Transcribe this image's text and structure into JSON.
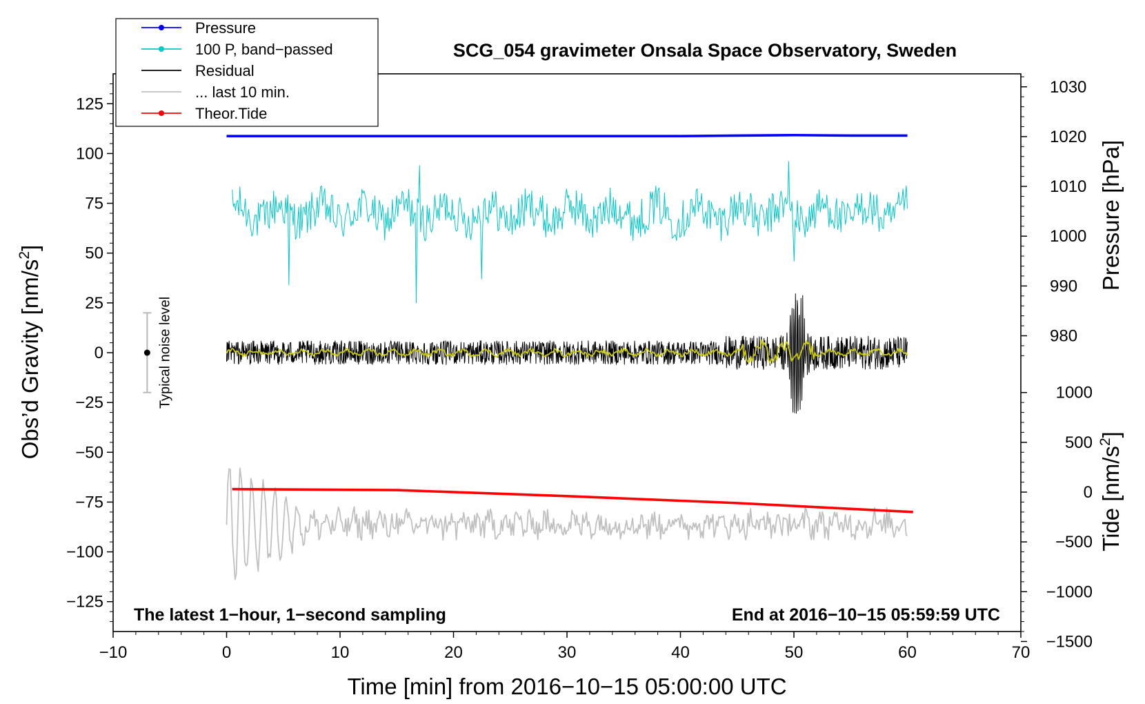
{
  "chart_data": {
    "type": "line",
    "title": "SCG_054 gravimeter Onsala Space Observatory, Sweden",
    "xlabel": "Time [min] from 2016−10−15 05:00:00 UTC",
    "ylabel_left": "Obs’d Gravity [nm/s",
    "ylabel_left_sup": "2",
    "ylabel_left_end": "]",
    "ylabel_right_top": "Pressure [hPa]",
    "ylabel_right_bottom": "Tide [nm/s",
    "ylabel_right_bottom_sup": "2",
    "ylabel_right_bottom_end": "]",
    "xlim": [
      -10,
      70
    ],
    "ylim": [
      -140,
      140
    ],
    "xticks": [
      -10,
      0,
      10,
      20,
      30,
      40,
      50,
      60,
      70
    ],
    "xtick_labels": [
      "−10",
      "0",
      "10",
      "20",
      "30",
      "40",
      "50",
      "60",
      "70"
    ],
    "yticks": [
      125,
      100,
      75,
      50,
      25,
      0,
      -25,
      -50,
      -75,
      -100,
      -125
    ],
    "ytick_labels": [
      "125",
      "100",
      "75",
      "50",
      "25",
      "0",
      "−25",
      "−50",
      "−75",
      "−100",
      "−125"
    ],
    "pressure_axis": {
      "ticks": [
        1030,
        1020,
        1010,
        1000,
        990,
        980
      ],
      "tick_labels": [
        "1030",
        "1020",
        "1010",
        "1000",
        "990",
        "980"
      ],
      "gravity_at_1020": 108.5,
      "gravity_per_hpa": 2.5
    },
    "tide_axis": {
      "ticks": [
        1000,
        500,
        0,
        -500,
        -1000,
        -1500
      ],
      "tick_labels": [
        "1000",
        "500",
        "0",
        "−500",
        "−1000",
        "−1500"
      ],
      "gravity_at_0": -70,
      "gravity_per_unit": 0.05
    },
    "legend": {
      "position": "top-left",
      "entries": [
        {
          "label": "Pressure",
          "color": "#0000ff",
          "marker": true
        },
        {
          "label": "100 P, band−passed",
          "color": "#00c8c8",
          "marker": true
        },
        {
          "label": "Residual",
          "color": "#000000",
          "marker": false
        },
        {
          "label": "... last 10 min.",
          "color": "#c0c0c0",
          "marker": false
        },
        {
          "label": "Theor.Tide",
          "color": "#ff0000",
          "marker": true
        }
      ]
    },
    "series": [
      {
        "name": "Pressure",
        "color": "#0000ff",
        "unit": "hPa",
        "x": [
          0,
          10,
          20,
          30,
          40,
          45,
          50,
          55,
          60
        ],
        "values": [
          1020.1,
          1020.1,
          1020.1,
          1020.1,
          1020.1,
          1020.2,
          1020.3,
          1020.2,
          1020.2
        ]
      },
      {
        "name": "100 P, band−passed",
        "color": "#00c8c8",
        "unit": "nm/s2",
        "baseline": 70,
        "amplitude": 10,
        "x_range": [
          0.5,
          60
        ],
        "spikes": [
          {
            "x": 5.5,
            "value": 34
          },
          {
            "x": 16.7,
            "value": 25
          },
          {
            "x": 22.5,
            "value": 37
          },
          {
            "x": 17,
            "value": 94
          },
          {
            "x": 49.5,
            "value": 96
          },
          {
            "x": 50,
            "value": 46
          }
        ]
      },
      {
        "name": "Residual",
        "color": "#000000",
        "unit": "nm/s2",
        "baseline": 0,
        "amplitude": 6,
        "x_range": [
          0,
          60
        ],
        "event": {
          "x_start": 48,
          "x_end": 52,
          "max": 37,
          "min": -33
        }
      },
      {
        "name": "Residual (smoothed)",
        "color": "#cccc00",
        "unit": "nm/s2",
        "baseline": 0,
        "amplitude": 2,
        "x_range": [
          0,
          60
        ]
      },
      {
        "name": "... last 10 min.",
        "color": "#c0c0c0",
        "unit": "nm/s2",
        "baseline": -86,
        "amplitude": 6,
        "x_range": [
          0,
          60
        ],
        "early_large": {
          "x_end": 7,
          "max": -51,
          "min": -122
        }
      },
      {
        "name": "Theor.Tide",
        "color": "#ff0000",
        "unit": "nm/s2 (tide)",
        "x": [
          0.5,
          15,
          30,
          45,
          60.5
        ],
        "values": [
          30,
          20,
          -40,
          -110,
          -200
        ]
      }
    ],
    "noise_bar": {
      "label": "Typical noise level",
      "x": -7,
      "center": 0,
      "lower": -20,
      "upper": 20
    },
    "annotations": {
      "bottom_left": "The latest 1−hour, 1−second sampling",
      "bottom_right": "End at 2016−10−15 05:59:59 UTC"
    }
  }
}
